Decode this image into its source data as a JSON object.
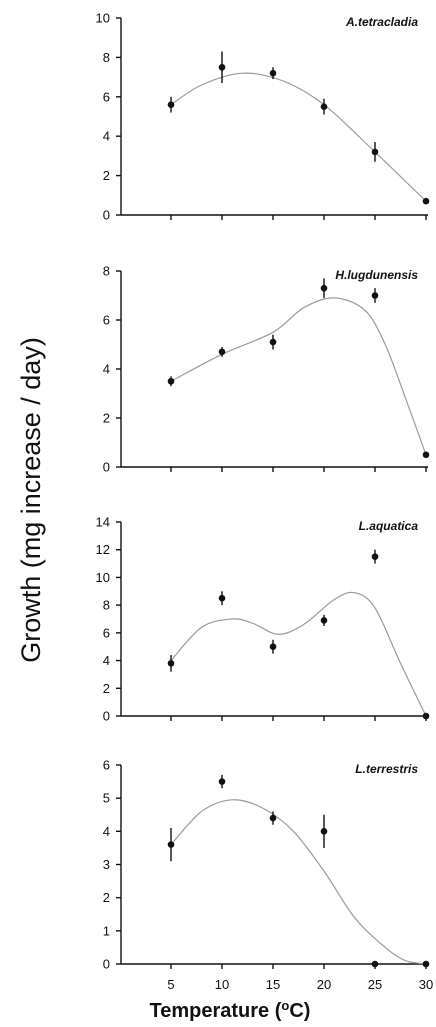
{
  "chart_data": [
    {
      "type": "scatter",
      "title": "A.tetracladia",
      "x": [
        5,
        10,
        15,
        20,
        25,
        30
      ],
      "y": [
        5.6,
        7.5,
        7.2,
        5.5,
        3.2,
        0.7
      ],
      "err": [
        0.4,
        0.8,
        0.3,
        0.4,
        0.5,
        0
      ],
      "fit": [
        [
          5,
          5.6
        ],
        [
          8,
          6.6
        ],
        [
          12,
          7.2
        ],
        [
          16,
          6.8
        ],
        [
          20,
          5.6
        ],
        [
          25,
          3.2
        ],
        [
          28,
          1.7
        ],
        [
          30,
          0.7
        ]
      ],
      "ylim": [
        0,
        10
      ],
      "yticks": [
        "0",
        "2",
        "4",
        "6",
        "8",
        "10"
      ]
    },
    {
      "type": "scatter",
      "title": "H.lugdunensis",
      "x": [
        5,
        10,
        15,
        20,
        25,
        30
      ],
      "y": [
        3.5,
        4.7,
        5.1,
        7.3,
        7.0,
        0.5
      ],
      "err": [
        0.2,
        0.2,
        0.3,
        0.4,
        0.3,
        0
      ],
      "fit": [
        [
          5,
          3.5
        ],
        [
          10,
          4.6
        ],
        [
          15,
          5.5
        ],
        [
          18,
          6.5
        ],
        [
          21,
          6.9
        ],
        [
          24,
          6.4
        ],
        [
          26,
          5.0
        ],
        [
          28,
          2.8
        ],
        [
          30,
          0.5
        ]
      ],
      "ylim": [
        0,
        8
      ],
      "yticks": [
        "0",
        "2",
        "4",
        "6",
        "8"
      ]
    },
    {
      "type": "scatter",
      "title": "L.aquatica",
      "x": [
        5,
        10,
        15,
        20,
        25,
        30
      ],
      "y": [
        3.8,
        8.5,
        5.0,
        6.9,
        11.5,
        0
      ],
      "err": [
        0.6,
        0.5,
        0.5,
        0.4,
        0.5,
        0
      ],
      "fit": [
        [
          5,
          4.0
        ],
        [
          8,
          6.4
        ],
        [
          11,
          7.0
        ],
        [
          13,
          6.7
        ],
        [
          15.5,
          5.9
        ],
        [
          18,
          6.6
        ],
        [
          21,
          8.4
        ],
        [
          23,
          8.9
        ],
        [
          25,
          7.8
        ],
        [
          27.5,
          3.8
        ],
        [
          30,
          0
        ]
      ],
      "ylim": [
        0,
        14
      ],
      "yticks": [
        "0",
        "2",
        "4",
        "6",
        "8",
        "10",
        "12",
        "14"
      ]
    },
    {
      "type": "scatter",
      "title": "L.terrestris",
      "x": [
        5,
        10,
        15,
        20,
        25,
        30
      ],
      "y": [
        3.6,
        5.5,
        4.4,
        4.0,
        0,
        0
      ],
      "err": [
        0.5,
        0.2,
        0.2,
        0.5,
        0,
        0
      ],
      "fit": [
        [
          5,
          3.6
        ],
        [
          8,
          4.6
        ],
        [
          11,
          4.95
        ],
        [
          14,
          4.7
        ],
        [
          17,
          4.0
        ],
        [
          20,
          2.8
        ],
        [
          23,
          1.4
        ],
        [
          26,
          0.5
        ],
        [
          28,
          0.1
        ],
        [
          30,
          0
        ]
      ],
      "ylim": [
        0,
        6
      ],
      "yticks": [
        "0",
        "1",
        "2",
        "3",
        "4",
        "5",
        "6"
      ]
    }
  ],
  "xticks": [
    "5",
    "10",
    "15",
    "20",
    "25",
    "30"
  ],
  "ylabel": "Growth (mg increase /  day)",
  "xlabel_main": "Temperature (",
  "xlabel_sup": "o",
  "xlabel_end": "C)"
}
